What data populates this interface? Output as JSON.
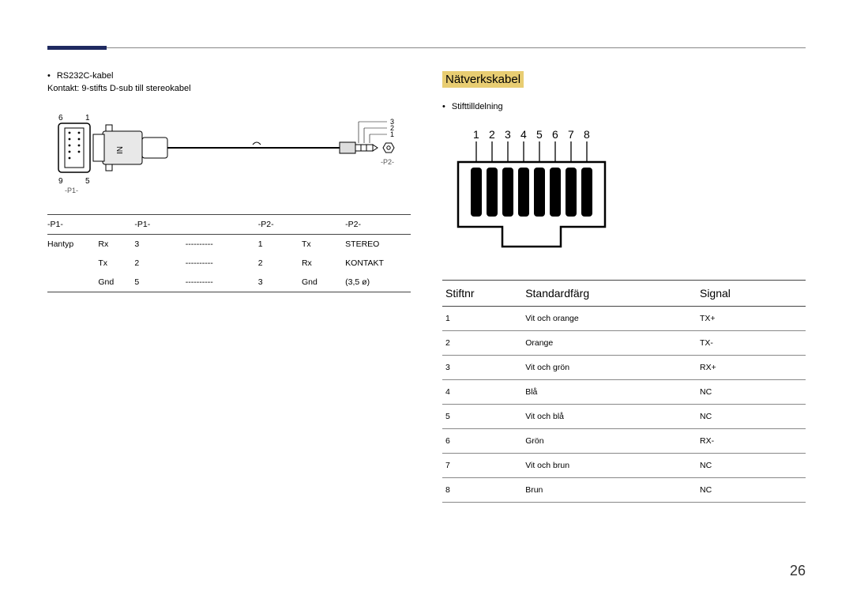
{
  "page_number": "26",
  "left": {
    "bullet": "RS232C-kabel",
    "subtitle": "Kontakt: 9-stifts D-sub till stereokabel",
    "diagram": {
      "dsub_labels": {
        "tl": "6",
        "tr": "1",
        "bl": "9",
        "br": "5"
      },
      "p1_label": "-P1-",
      "p2_label": "-P2-",
      "plug_text": "IN",
      "jack_nums": [
        "3",
        "2",
        "1"
      ]
    },
    "table": {
      "headers": [
        "-P1-",
        "",
        "-P1-",
        "",
        "-P2-",
        "",
        "-P2-"
      ],
      "rows": [
        [
          "Hantyp",
          "Rx",
          "3",
          "----------",
          "1",
          "Tx",
          "STEREO"
        ],
        [
          "",
          "Tx",
          "2",
          "----------",
          "2",
          "Rx",
          "KONTAKT"
        ],
        [
          "",
          "Gnd",
          "5",
          "----------",
          "3",
          "Gnd",
          "(3,5 ø)"
        ]
      ]
    }
  },
  "right": {
    "title": "Nätverkskabel",
    "bullet": "Stifttilldelning",
    "pin_numbers": [
      "1",
      "2",
      "3",
      "4",
      "5",
      "6",
      "7",
      "8"
    ],
    "table": {
      "headers": [
        "Stiftnr",
        "Standardfärg",
        "Signal"
      ],
      "rows": [
        [
          "1",
          "Vit och orange",
          "TX+"
        ],
        [
          "2",
          "Orange",
          "TX-"
        ],
        [
          "3",
          "Vit och grön",
          "RX+"
        ],
        [
          "4",
          "Blå",
          "NC"
        ],
        [
          "5",
          "Vit och blå",
          "NC"
        ],
        [
          "6",
          "Grön",
          "RX-"
        ],
        [
          "7",
          "Vit och brun",
          "NC"
        ],
        [
          "8",
          "Brun",
          "NC"
        ]
      ]
    }
  },
  "colors": {
    "accent_bar": "#1f2a60",
    "highlight_bg": "#e8cd72",
    "rule": "#888888",
    "text": "#000000"
  }
}
